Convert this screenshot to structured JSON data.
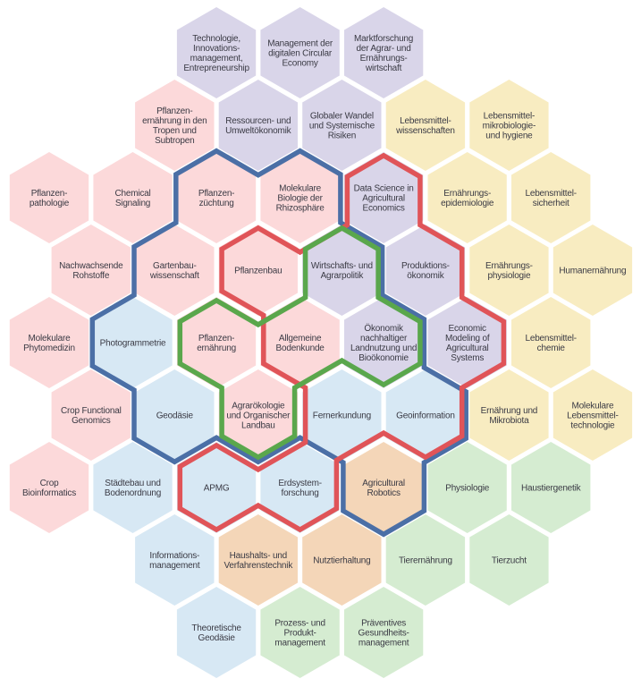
{
  "palette": {
    "plant": "#fcd9da",
    "economics": "#d9d5e9",
    "nutrition": "#f8ecc1",
    "geo": "#d7e8f4",
    "engineering": "#f4d6b8",
    "animal": "#d5ecd1"
  },
  "hexes": [
    {
      "lines": [
        "Technologie,",
        "Innovations-",
        "management,",
        "Entrepreneurship"
      ],
      "cat": "economics"
    },
    {
      "lines": [
        "Management der",
        "digitalen Circular",
        "Economy"
      ],
      "cat": "economics"
    },
    {
      "lines": [
        "Marktforschung",
        "der Agrar- und",
        "Ernährungs-",
        "wirtschaft"
      ],
      "cat": "economics"
    },
    {
      "lines": [
        "Pflanzen-",
        "ernährung in den",
        "Tropen und",
        "Subtropen"
      ],
      "cat": "plant"
    },
    {
      "lines": [
        "Ressourcen- und",
        "Umweltökonomik"
      ],
      "cat": "economics"
    },
    {
      "lines": [
        "Globaler Wandel",
        "und Systemische",
        "Risiken"
      ],
      "cat": "economics"
    },
    {
      "lines": [
        "Lebensmittel-",
        "wissenschaften"
      ],
      "cat": "nutrition"
    },
    {
      "lines": [
        "Lebensmittel-",
        "mikrobiologie-",
        "und hygiene"
      ],
      "cat": "nutrition"
    },
    {
      "lines": [
        "Pflanzen-",
        "pathologie"
      ],
      "cat": "plant"
    },
    {
      "lines": [
        "Chemical",
        "Signaling"
      ],
      "cat": "plant"
    },
    {
      "lines": [
        "Pflanzen-",
        "züchtung"
      ],
      "cat": "plant"
    },
    {
      "lines": [
        "Molekulare",
        "Biologie der",
        "Rhizosphäre"
      ],
      "cat": "plant"
    },
    {
      "lines": [
        "Data Science in",
        "Agricultural",
        "Economics"
      ],
      "cat": "economics"
    },
    {
      "lines": [
        "Ernährungs-",
        "epidemiologie"
      ],
      "cat": "nutrition"
    },
    {
      "lines": [
        "Lebensmittel-",
        "sicherheit"
      ],
      "cat": "nutrition"
    },
    {
      "lines": [
        "Nachwachsende",
        "Rohstoffe"
      ],
      "cat": "plant"
    },
    {
      "lines": [
        "Gartenbau-",
        "wissenschaft"
      ],
      "cat": "plant"
    },
    {
      "lines": [
        "Pflanzenbau"
      ],
      "cat": "plant"
    },
    {
      "lines": [
        "Wirtschafts- und",
        "Agrarpolitik"
      ],
      "cat": "economics"
    },
    {
      "lines": [
        "Produktions-",
        "ökonomik"
      ],
      "cat": "economics"
    },
    {
      "lines": [
        "Ernährungs-",
        "physiologie"
      ],
      "cat": "nutrition"
    },
    {
      "lines": [
        "Humanernährung"
      ],
      "cat": "nutrition"
    },
    {
      "lines": [
        "Molekulare",
        "Phytomedizin"
      ],
      "cat": "plant"
    },
    {
      "lines": [
        "Photogrammetrie"
      ],
      "cat": "geo"
    },
    {
      "lines": [
        "Pflanzen-",
        "ernährung"
      ],
      "cat": "plant"
    },
    {
      "lines": [
        "Allgemeine",
        "Bodenkunde"
      ],
      "cat": "plant"
    },
    {
      "lines": [
        "Ökonomik",
        "nachhaltiger",
        "Landnutzung und",
        "Bioökonomie"
      ],
      "cat": "economics"
    },
    {
      "lines": [
        "Economic",
        "Modeling of",
        "Agricultural",
        "Systems"
      ],
      "cat": "economics"
    },
    {
      "lines": [
        "Lebensmittel-",
        "chemie"
      ],
      "cat": "nutrition"
    },
    {
      "lines": [
        "Crop Functional",
        "Genomics"
      ],
      "cat": "plant"
    },
    {
      "lines": [
        "Geodäsie"
      ],
      "cat": "geo"
    },
    {
      "lines": [
        "Agrarökologie",
        "und Organischer",
        "Landbau"
      ],
      "cat": "plant"
    },
    {
      "lines": [
        "Fernerkundung"
      ],
      "cat": "geo"
    },
    {
      "lines": [
        "Geoinformation"
      ],
      "cat": "geo"
    },
    {
      "lines": [
        "Ernährung und",
        "Mikrobiota"
      ],
      "cat": "nutrition"
    },
    {
      "lines": [
        "Molekulare",
        "Lebensmittel-",
        "technologie"
      ],
      "cat": "nutrition"
    },
    {
      "lines": [
        "Crop",
        "Bioinformatics"
      ],
      "cat": "plant"
    },
    {
      "lines": [
        "Städtebau und",
        "Bodenordnung"
      ],
      "cat": "geo"
    },
    {
      "lines": [
        "APMG"
      ],
      "cat": "geo"
    },
    {
      "lines": [
        "Erdsystem-",
        "forschung"
      ],
      "cat": "geo"
    },
    {
      "lines": [
        "Agricultural",
        "Robotics"
      ],
      "cat": "engineering"
    },
    {
      "lines": [
        "Physiologie"
      ],
      "cat": "animal"
    },
    {
      "lines": [
        "Haustiergenetik"
      ],
      "cat": "animal"
    },
    {
      "lines": [
        "Informations-",
        "management"
      ],
      "cat": "geo"
    },
    {
      "lines": [
        "Haushalts- und",
        "Verfahrenstechnik"
      ],
      "cat": "engineering"
    },
    {
      "lines": [
        "Nutztierhaltung"
      ],
      "cat": "engineering"
    },
    {
      "lines": [
        "Tierernährung"
      ],
      "cat": "animal"
    },
    {
      "lines": [
        "Tierzucht"
      ],
      "cat": "animal"
    },
    {
      "lines": [
        "Theoretische",
        "Geodäsie"
      ],
      "cat": "geo"
    },
    {
      "lines": [
        "Prozess- und",
        "Produkt-",
        "management"
      ],
      "cat": "animal"
    },
    {
      "lines": [
        "Präventives",
        "Gesundheits-",
        "management"
      ],
      "cat": "animal"
    }
  ],
  "outlines": [
    {
      "color": "#4b6fa6",
      "members": [
        10,
        11,
        16,
        17,
        18,
        23,
        24,
        25,
        26,
        30,
        31,
        32,
        33,
        40
      ]
    },
    {
      "color": "#e05458",
      "members": [
        12,
        17,
        18,
        19,
        25,
        26,
        27,
        32,
        33,
        38,
        39
      ]
    },
    {
      "color": "#5aa74c",
      "members": [
        18,
        24,
        25,
        26,
        31
      ]
    }
  ]
}
